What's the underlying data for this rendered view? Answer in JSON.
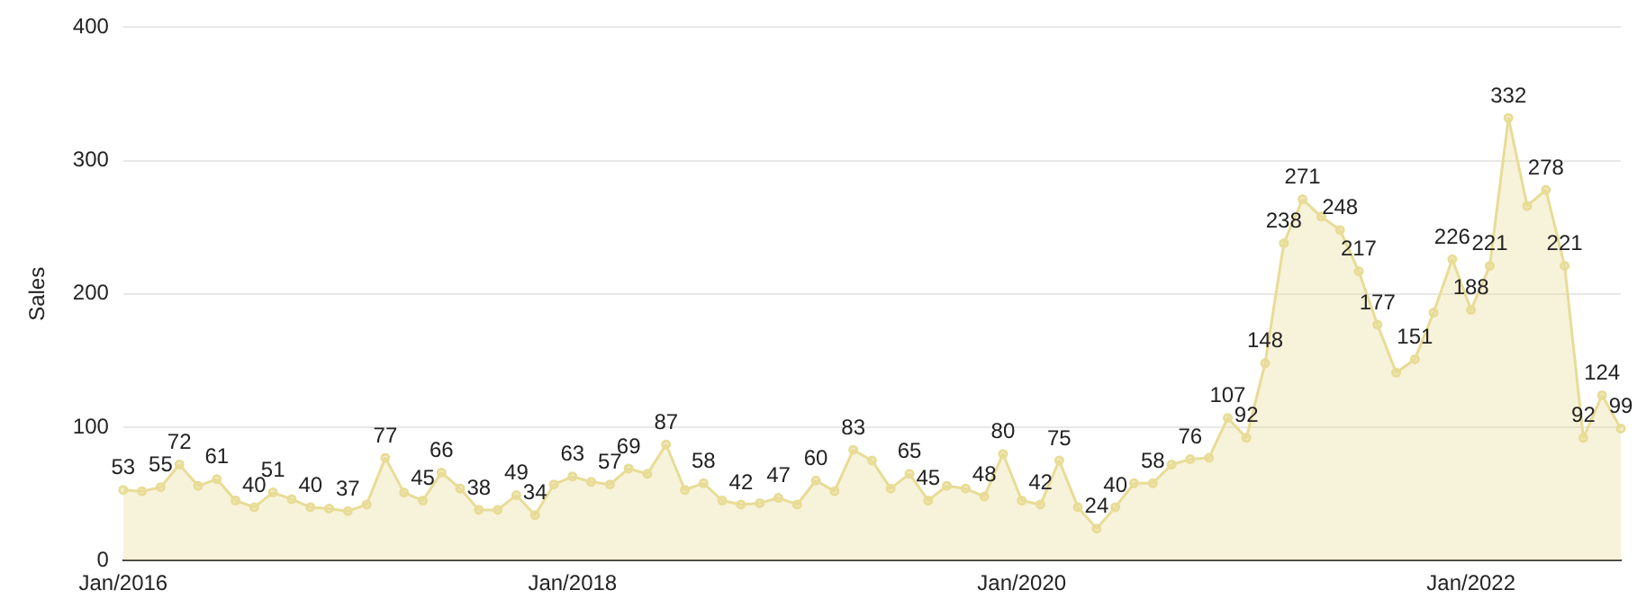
{
  "chart_data": {
    "type": "area",
    "ylabel": "Sales",
    "categories": [
      "Jan/2016",
      null,
      null,
      null,
      null,
      null,
      null,
      null,
      null,
      null,
      null,
      null,
      null,
      null,
      null,
      null,
      null,
      null,
      null,
      null,
      null,
      null,
      null,
      null,
      "Jan/2018",
      null,
      null,
      null,
      null,
      null,
      null,
      null,
      null,
      null,
      null,
      null,
      null,
      null,
      null,
      null,
      null,
      null,
      null,
      null,
      null,
      null,
      null,
      null,
      "Jan/2020",
      null,
      null,
      null,
      null,
      null,
      null,
      null,
      null,
      null,
      null,
      null,
      null,
      null,
      null,
      null,
      null,
      null,
      null,
      null,
      null,
      null,
      null,
      null,
      "Jan/2022",
      null,
      null,
      null,
      null,
      null,
      null,
      null,
      null
    ],
    "series": [
      {
        "color": "#e8dc96",
        "values": [
          53,
          52,
          55,
          72,
          56,
          61,
          45,
          40,
          51,
          46,
          40,
          39,
          37,
          42,
          77,
          51,
          45,
          66,
          54,
          38,
          38,
          49,
          34,
          57,
          63,
          59,
          57,
          69,
          65,
          87,
          53,
          58,
          45,
          42,
          43,
          47,
          42,
          60,
          52,
          83,
          75,
          54,
          65,
          45,
          56,
          54,
          48,
          80,
          45,
          42,
          75,
          40,
          24,
          40,
          58,
          58,
          72,
          76,
          77,
          107,
          92,
          148,
          238,
          271,
          258,
          248,
          217,
          177,
          141,
          151,
          186,
          226,
          188,
          221,
          332,
          266,
          278,
          221,
          92,
          124,
          99
        ],
        "value_labels": [
          "53",
          null,
          "55",
          "72",
          null,
          "61",
          null,
          "40",
          "51",
          null,
          "40",
          null,
          "37",
          null,
          "77",
          null,
          "45",
          "66",
          null,
          "38",
          null,
          "49",
          "34",
          null,
          "63",
          null,
          "57",
          "69",
          null,
          "87",
          null,
          "58",
          null,
          "42",
          null,
          "47",
          null,
          "60",
          null,
          "83",
          null,
          null,
          "65",
          "45",
          null,
          null,
          "48",
          "80",
          null,
          "42",
          "75",
          null,
          "24",
          "40",
          null,
          "58",
          null,
          "76",
          null,
          "107",
          "92",
          "148",
          "238",
          "271",
          null,
          "248",
          "217",
          "177",
          null,
          "151",
          null,
          "226",
          "188",
          "221",
          "332",
          null,
          "278",
          "221",
          "92",
          "124",
          "99"
        ]
      }
    ],
    "ylim": [
      0,
      400
    ],
    "yticks": [
      0,
      100,
      200,
      300,
      400
    ],
    "grid": "y",
    "marker": "circle",
    "legend": false
  }
}
